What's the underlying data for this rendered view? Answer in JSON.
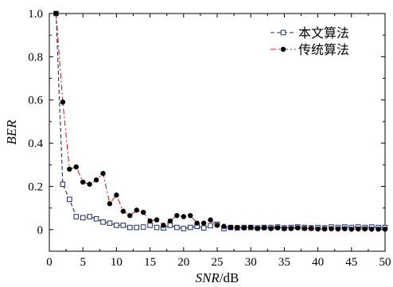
{
  "chart_data": {
    "type": "line",
    "xlabel_italic": "SNR",
    "xlabel_unit": "/dB",
    "ylabel": "BER",
    "xlim": [
      0,
      50
    ],
    "ylim": [
      -0.1,
      1.0
    ],
    "xticks": [
      0,
      5,
      10,
      15,
      20,
      25,
      30,
      35,
      40,
      45,
      50
    ],
    "yticks": [
      0,
      0.2,
      0.4,
      0.6,
      0.8,
      1.0
    ],
    "ytick_labels": [
      "0",
      "0.2",
      "0.4",
      "0.6",
      "0.8",
      "1.0"
    ],
    "grid": false,
    "legend_position": "top-right",
    "x": [
      1,
      2,
      3,
      4,
      5,
      6,
      7,
      8,
      9,
      10,
      11,
      12,
      13,
      14,
      15,
      16,
      17,
      18,
      19,
      20,
      21,
      22,
      23,
      24,
      25,
      26,
      27,
      28,
      29,
      30,
      31,
      32,
      33,
      34,
      35,
      36,
      37,
      38,
      39,
      40,
      41,
      42,
      43,
      44,
      45,
      46,
      47,
      48,
      49,
      50
    ],
    "series": [
      {
        "name": "本文算法",
        "color": "#1f2a6b",
        "marker": "open-square",
        "line": "dashed",
        "values": [
          1.0,
          0.21,
          0.14,
          0.06,
          0.055,
          0.06,
          0.05,
          0.035,
          0.03,
          0.02,
          0.02,
          0.01,
          0.01,
          0.012,
          0.02,
          0.01,
          0.008,
          0.02,
          0.01,
          0.005,
          0.01,
          0.015,
          0.008,
          0.018,
          0.025,
          0.005,
          0.01,
          0.008,
          0.01,
          0.01,
          0.008,
          0.01,
          0.01,
          0.012,
          0.008,
          0.01,
          0.012,
          0.01,
          0.008,
          0.01,
          0.008,
          0.012,
          0.01,
          0.012,
          0.01,
          0.012,
          0.01,
          0.012,
          0.01,
          0.01
        ]
      },
      {
        "name": "传统算法",
        "color": "#d62020",
        "marker": "filled-circle",
        "line": "dash-dot",
        "values": [
          1.0,
          0.59,
          0.28,
          0.29,
          0.22,
          0.21,
          0.23,
          0.26,
          0.12,
          0.16,
          0.085,
          0.065,
          0.09,
          0.08,
          0.04,
          0.045,
          0.02,
          0.04,
          0.065,
          0.06,
          0.065,
          0.03,
          0.03,
          0.045,
          0.02,
          0.015,
          0.01,
          0.01,
          0.008,
          0.01,
          0.005,
          0.008,
          0.005,
          0.008,
          0.004,
          0.005,
          0.008,
          0.005,
          0.005,
          0.003,
          0.003,
          0.004,
          0.003,
          0.004,
          0.002,
          0.003,
          0.003,
          0.002,
          0.002,
          0.002
        ]
      }
    ]
  }
}
